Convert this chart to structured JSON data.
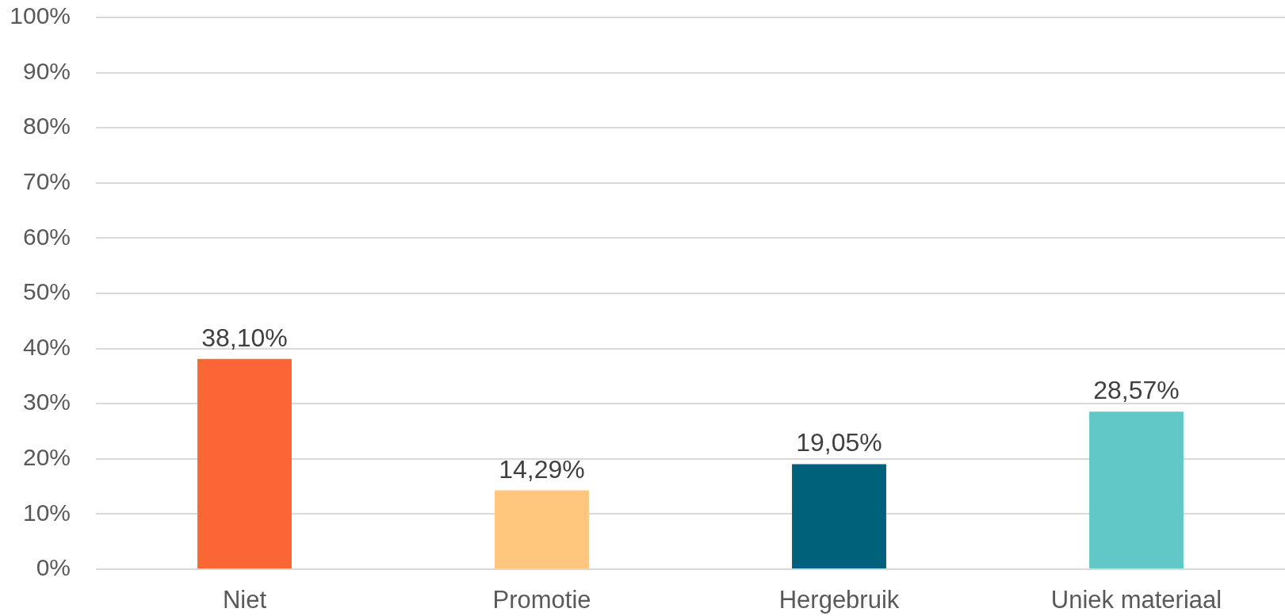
{
  "chart_data": {
    "type": "bar",
    "categories": [
      "Niet",
      "Promotie",
      "Hergebruik",
      "Uniek materiaal"
    ],
    "values": [
      38.1,
      14.29,
      19.05,
      28.57
    ],
    "colors": [
      "#fc6535",
      "#ffc77d",
      "#00617a",
      "#62c8c7"
    ],
    "value_labels": [
      "38,10%",
      "14,29%",
      "19,05%",
      "28,57%"
    ],
    "ylim": [
      0,
      100
    ],
    "yticks": [
      {
        "value": 0,
        "label": "0%"
      },
      {
        "value": 10,
        "label": "10%"
      },
      {
        "value": 20,
        "label": "20%"
      },
      {
        "value": 30,
        "label": "30%"
      },
      {
        "value": 40,
        "label": "40%"
      },
      {
        "value": 50,
        "label": "50%"
      },
      {
        "value": 60,
        "label": "60%"
      },
      {
        "value": 70,
        "label": "70%"
      },
      {
        "value": 80,
        "label": "80%"
      },
      {
        "value": 90,
        "label": "90%"
      },
      {
        "value": 100,
        "label": "100%"
      }
    ],
    "grid": "y"
  }
}
